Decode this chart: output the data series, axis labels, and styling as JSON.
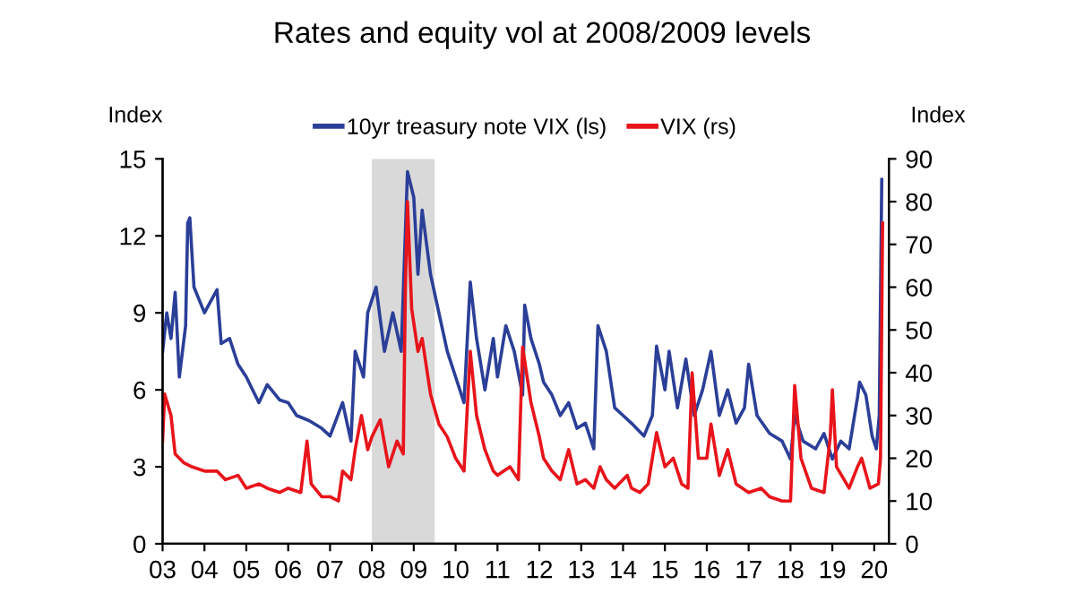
{
  "chart_data": {
    "type": "line",
    "title": "Rates and equity vol at 2008/2009 levels",
    "ylabel": "Index",
    "y2label": "Index",
    "legend": "top",
    "xlim": [
      2003,
      2020.35
    ],
    "xticks": [
      {
        "value": 2003,
        "label": "03"
      },
      {
        "value": 2004,
        "label": "04"
      },
      {
        "value": 2005,
        "label": "05"
      },
      {
        "value": 2006,
        "label": "06"
      },
      {
        "value": 2007,
        "label": "07"
      },
      {
        "value": 2008,
        "label": "08"
      },
      {
        "value": 2009,
        "label": "09"
      },
      {
        "value": 2010,
        "label": "10"
      },
      {
        "value": 2011,
        "label": "11"
      },
      {
        "value": 2012,
        "label": "12"
      },
      {
        "value": 2013,
        "label": "13"
      },
      {
        "value": 2014,
        "label": "14"
      },
      {
        "value": 2015,
        "label": "15"
      },
      {
        "value": 2016,
        "label": "16"
      },
      {
        "value": 2017,
        "label": "17"
      },
      {
        "value": 2018,
        "label": "18"
      },
      {
        "value": 2019,
        "label": "19"
      },
      {
        "value": 2020,
        "label": "20"
      }
    ],
    "ylim": [
      0,
      15
    ],
    "yticks": [
      0,
      3,
      6,
      9,
      12,
      15
    ],
    "y2lim": [
      0,
      90
    ],
    "y2ticks": [
      0,
      10,
      20,
      30,
      40,
      50,
      60,
      70,
      80,
      90
    ],
    "bands": [
      {
        "axis": "x",
        "from": 2008.0,
        "to": 2009.5,
        "color": "#d9d9d9"
      }
    ],
    "series": [
      {
        "name": "10yr treasury note VIX (ls)",
        "color": "#2b3f98",
        "axis": "y",
        "x": [
          2003.0,
          2003.1,
          2003.2,
          2003.3,
          2003.4,
          2003.55,
          2003.6,
          2003.65,
          2003.75,
          2004.0,
          2004.3,
          2004.4,
          2004.6,
          2004.8,
          2005.0,
          2005.3,
          2005.5,
          2005.8,
          2006.0,
          2006.2,
          2006.5,
          2006.8,
          2007.0,
          2007.3,
          2007.5,
          2007.6,
          2007.8,
          2007.9,
          2008.1,
          2008.3,
          2008.5,
          2008.7,
          2008.85,
          2009.0,
          2009.1,
          2009.2,
          2009.4,
          2009.6,
          2009.8,
          2010.0,
          2010.2,
          2010.35,
          2010.5,
          2010.7,
          2010.9,
          2011.0,
          2011.2,
          2011.4,
          2011.6,
          2011.65,
          2011.8,
          2012.0,
          2012.1,
          2012.3,
          2012.5,
          2012.7,
          2012.9,
          2013.1,
          2013.3,
          2013.4,
          2013.6,
          2013.8,
          2014.0,
          2014.2,
          2014.5,
          2014.7,
          2014.8,
          2015.0,
          2015.1,
          2015.3,
          2015.5,
          2015.7,
          2015.9,
          2016.1,
          2016.3,
          2016.5,
          2016.7,
          2016.9,
          2017.0,
          2017.2,
          2017.5,
          2017.8,
          2018.0,
          2018.1,
          2018.3,
          2018.6,
          2018.8,
          2019.0,
          2019.2,
          2019.4,
          2019.6,
          2019.65,
          2019.8,
          2019.95,
          2020.05,
          2020.12,
          2020.18
        ],
        "values": [
          7.5,
          9.0,
          8.0,
          9.8,
          6.5,
          8.5,
          12.5,
          12.7,
          10.0,
          9.0,
          9.9,
          7.8,
          8.0,
          7.0,
          6.5,
          5.5,
          6.2,
          5.6,
          5.5,
          5.0,
          4.8,
          4.5,
          4.2,
          5.5,
          4.0,
          7.5,
          6.5,
          9.0,
          10.0,
          7.5,
          9.0,
          7.5,
          14.5,
          13.5,
          10.5,
          13.0,
          10.5,
          9.0,
          7.5,
          6.5,
          5.5,
          10.2,
          8.0,
          6.0,
          8.0,
          6.5,
          8.5,
          7.5,
          5.8,
          9.3,
          8.0,
          7.0,
          6.3,
          5.8,
          5.0,
          5.5,
          4.5,
          4.7,
          3.7,
          8.5,
          7.5,
          5.3,
          5.0,
          4.7,
          4.2,
          5.0,
          7.7,
          6.0,
          7.5,
          5.3,
          7.2,
          5.0,
          6.0,
          7.5,
          5.0,
          6.0,
          4.7,
          5.3,
          7.0,
          5.0,
          4.3,
          4.0,
          3.3,
          5.0,
          4.0,
          3.7,
          4.3,
          3.3,
          4.0,
          3.7,
          5.7,
          6.3,
          5.8,
          4.2,
          3.7,
          5.0,
          14.2
        ]
      },
      {
        "name": "VIX (rs)",
        "color": "#e8141b",
        "axis": "y2",
        "x": [
          2003.0,
          2003.05,
          2003.2,
          2003.3,
          2003.5,
          2003.7,
          2004.0,
          2004.3,
          2004.5,
          2004.8,
          2005.0,
          2005.3,
          2005.5,
          2005.8,
          2006.0,
          2006.3,
          2006.45,
          2006.55,
          2006.8,
          2007.0,
          2007.2,
          2007.3,
          2007.5,
          2007.6,
          2007.75,
          2007.9,
          2008.0,
          2008.2,
          2008.4,
          2008.6,
          2008.75,
          2008.8,
          2008.85,
          2008.95,
          2009.1,
          2009.2,
          2009.4,
          2009.6,
          2009.8,
          2010.0,
          2010.2,
          2010.35,
          2010.5,
          2010.7,
          2010.9,
          2011.0,
          2011.3,
          2011.5,
          2011.6,
          2011.8,
          2012.0,
          2012.1,
          2012.3,
          2012.5,
          2012.7,
          2012.9,
          2013.1,
          2013.3,
          2013.45,
          2013.6,
          2013.8,
          2014.1,
          2014.2,
          2014.4,
          2014.6,
          2014.8,
          2015.0,
          2015.2,
          2015.4,
          2015.55,
          2015.65,
          2015.8,
          2016.0,
          2016.1,
          2016.3,
          2016.5,
          2016.7,
          2017.0,
          2017.3,
          2017.5,
          2017.8,
          2018.0,
          2018.1,
          2018.25,
          2018.5,
          2018.8,
          2018.95,
          2019.0,
          2019.1,
          2019.4,
          2019.6,
          2019.7,
          2019.9,
          2020.1,
          2020.15,
          2020.2
        ],
        "values": [
          24,
          35,
          30,
          21,
          19,
          18,
          17,
          17,
          15,
          16,
          13,
          14,
          13,
          12,
          13,
          12,
          24,
          14,
          11,
          11,
          10,
          17,
          15,
          22,
          30,
          22,
          25,
          29,
          18,
          24,
          21,
          60,
          80,
          55,
          45,
          48,
          35,
          28,
          25,
          20,
          17,
          45,
          30,
          22,
          17,
          16,
          18,
          15,
          46,
          33,
          25,
          20,
          17,
          15,
          22,
          14,
          15,
          13,
          18,
          15,
          13,
          16,
          13,
          12,
          14,
          26,
          18,
          20,
          14,
          13,
          40,
          20,
          20,
          28,
          16,
          22,
          14,
          12,
          13,
          11,
          10,
          10,
          37,
          20,
          13,
          12,
          25,
          36,
          18,
          13,
          18,
          20,
          13,
          14,
          20,
          75
        ]
      }
    ]
  }
}
